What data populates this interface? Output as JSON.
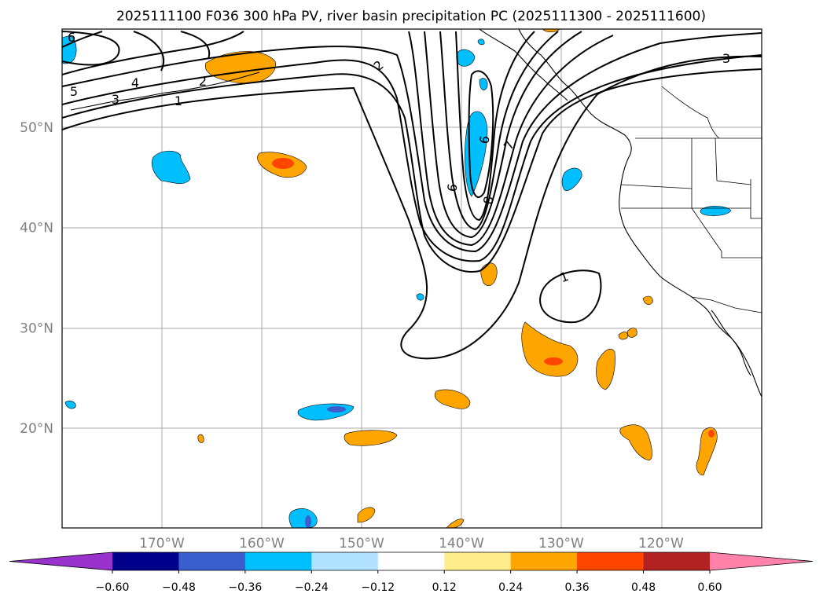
{
  "title": "2025111100 F036 300 hPa PV, river basin precipitation PC (2025111300 - 2025111600)",
  "map": {
    "lon_ticks": [
      {
        "lon": -170,
        "label": "170°W"
      },
      {
        "lon": -160,
        "label": "160°W"
      },
      {
        "lon": -150,
        "label": "150°W"
      },
      {
        "lon": -140,
        "label": "140°W"
      },
      {
        "lon": -130,
        "label": "130°W"
      },
      {
        "lon": -120,
        "label": "120°W"
      }
    ],
    "lat_ticks": [
      {
        "lat": 50,
        "label": "50°N"
      },
      {
        "lat": 40,
        "label": "40°N"
      },
      {
        "lat": 30,
        "label": "30°N"
      },
      {
        "lat": 20,
        "label": "20°N"
      }
    ],
    "pv_contour_labels": [
      "6",
      "5",
      "4",
      "3",
      "2",
      "1",
      "2",
      "6",
      "6",
      "8",
      "7",
      "1",
      "3"
    ]
  },
  "colorbar": {
    "colors": [
      "#9932cc",
      "#00008b",
      "#3a5fcd",
      "#00bfff",
      "#b0e2ff",
      "#ffffff",
      "#ffec8b",
      "#ffa500",
      "#ff4500",
      "#b22222",
      "#ff82ab"
    ],
    "tick_labels": [
      "−0.60",
      "−0.48",
      "−0.36",
      "−0.24",
      "−0.12",
      "0.12",
      "0.24",
      "0.36",
      "0.48",
      "0.60"
    ]
  },
  "colors": {
    "positive": "#ffa500",
    "strong_positive": "#ff4500",
    "negative": "#00bfff",
    "strong_negative": "#3a5fcd",
    "contour": "#000000",
    "grid": "#a9a9a9"
  }
}
